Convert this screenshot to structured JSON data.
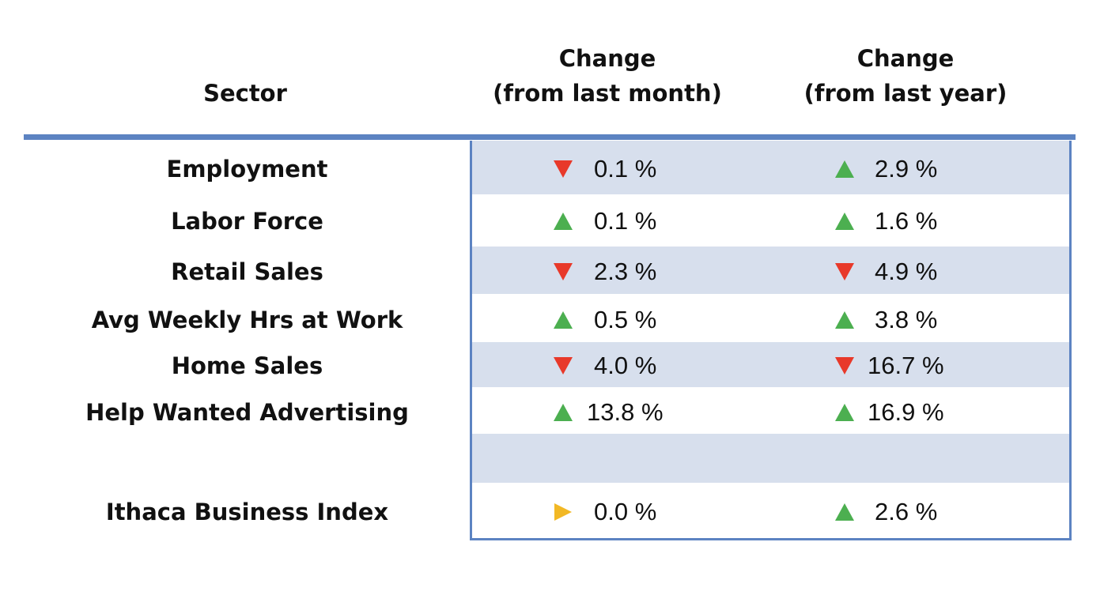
{
  "headers": {
    "sector": "Sector",
    "month_line1": "Change",
    "month_line2": "(from last month)",
    "year_line1": "Change",
    "year_line2": "(from last year)"
  },
  "colors": {
    "up": "#4caf50",
    "down": "#e8392a",
    "flat": "#f2b825",
    "accent": "#5c83c2",
    "band": "#d7dfed"
  },
  "chart_data": {
    "type": "table",
    "columns": [
      "Sector",
      "Change (from last month)",
      "Change (from last year)"
    ],
    "rows": [
      {
        "sector": "Employment",
        "month": {
          "dir": "down",
          "value": "0.1 %"
        },
        "year": {
          "dir": "up",
          "value": "2.9 %"
        }
      },
      {
        "sector": "Labor Force",
        "month": {
          "dir": "up",
          "value": "0.1 %"
        },
        "year": {
          "dir": "up",
          "value": "1.6 %"
        }
      },
      {
        "sector": "Retail  Sales",
        "month": {
          "dir": "down",
          "value": "2.3 %"
        },
        "year": {
          "dir": "down",
          "value": "4.9 %"
        }
      },
      {
        "sector": "Avg Weekly Hrs at Work",
        "month": {
          "dir": "up",
          "value": "0.5 %"
        },
        "year": {
          "dir": "up",
          "value": "3.8 %"
        }
      },
      {
        "sector": "Home Sales",
        "month": {
          "dir": "down",
          "value": "4.0 %"
        },
        "year": {
          "dir": "down",
          "value": "16.7 %"
        }
      },
      {
        "sector": "Help Wanted Advertising",
        "month": {
          "dir": "up",
          "value": "13.8 %"
        },
        "year": {
          "dir": "up",
          "value": "16.9 %"
        }
      },
      {
        "sector": "Ithaca Business Index",
        "month": {
          "dir": "flat",
          "value": "0.0 %"
        },
        "year": {
          "dir": "up",
          "value": "2.6 %"
        }
      }
    ]
  }
}
